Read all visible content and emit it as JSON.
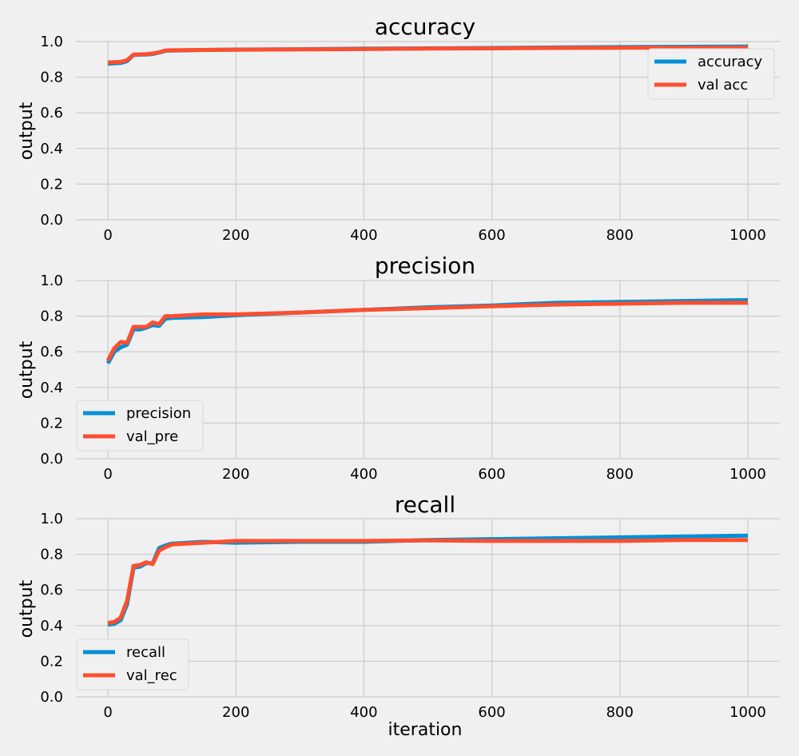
{
  "figure": {
    "background": "#f0f0f0"
  },
  "chart_data": [
    {
      "type": "line",
      "title": "accuracy",
      "xlabel": "",
      "ylabel": "output",
      "xlim": [
        -50,
        1050
      ],
      "ylim": [
        0.0,
        1.0
      ],
      "xticks": [
        "0",
        "200",
        "400",
        "600",
        "800",
        "1000"
      ],
      "yticks": [
        "0.0",
        "0.2",
        "0.4",
        "0.6",
        "0.8",
        "1.0"
      ],
      "grid": true,
      "legend": "top-right",
      "x": [
        0,
        10,
        20,
        30,
        40,
        50,
        60,
        70,
        80,
        90,
        100,
        150,
        200,
        300,
        400,
        500,
        600,
        700,
        800,
        900,
        1000
      ],
      "series": [
        {
          "name": "accuracy",
          "color": "#008fd5",
          "values": [
            0.875,
            0.878,
            0.88,
            0.89,
            0.925,
            0.926,
            0.927,
            0.93,
            0.938,
            0.948,
            0.95,
            0.953,
            0.955,
            0.957,
            0.96,
            0.962,
            0.964,
            0.967,
            0.969,
            0.971,
            0.972
          ]
        },
        {
          "name": "val acc",
          "color": "#fc4f30",
          "values": [
            0.882,
            0.884,
            0.886,
            0.895,
            0.927,
            0.928,
            0.929,
            0.933,
            0.94,
            0.95,
            0.951,
            0.953,
            0.954,
            0.956,
            0.958,
            0.961,
            0.962,
            0.964,
            0.965,
            0.966,
            0.966
          ]
        }
      ]
    },
    {
      "type": "line",
      "title": "precision",
      "xlabel": "",
      "ylabel": "output",
      "xlim": [
        -50,
        1050
      ],
      "ylim": [
        0.0,
        1.0
      ],
      "xticks": [
        "0",
        "200",
        "400",
        "600",
        "800",
        "1000"
      ],
      "yticks": [
        "0.0",
        "0.2",
        "0.4",
        "0.6",
        "0.8",
        "1.0"
      ],
      "grid": true,
      "legend": "bottom-left",
      "x": [
        0,
        10,
        20,
        30,
        40,
        50,
        60,
        70,
        80,
        90,
        100,
        150,
        200,
        300,
        400,
        500,
        600,
        700,
        800,
        900,
        1000
      ],
      "series": [
        {
          "name": "precision",
          "color": "#008fd5",
          "values": [
            0.535,
            0.6,
            0.625,
            0.64,
            0.725,
            0.725,
            0.735,
            0.75,
            0.745,
            0.785,
            0.79,
            0.795,
            0.805,
            0.82,
            0.835,
            0.85,
            0.86,
            0.875,
            0.88,
            0.885,
            0.89
          ]
        },
        {
          "name": "val_pre",
          "color": "#fc4f30",
          "values": [
            0.55,
            0.62,
            0.655,
            0.65,
            0.74,
            0.74,
            0.74,
            0.765,
            0.755,
            0.8,
            0.8,
            0.81,
            0.81,
            0.82,
            0.835,
            0.845,
            0.855,
            0.865,
            0.87,
            0.875,
            0.875
          ]
        }
      ]
    },
    {
      "type": "line",
      "title": "recall",
      "xlabel": "iteration",
      "ylabel": "output",
      "xlim": [
        -50,
        1050
      ],
      "ylim": [
        0.0,
        1.0
      ],
      "xticks": [
        "0",
        "200",
        "400",
        "600",
        "800",
        "1000"
      ],
      "yticks": [
        "0.0",
        "0.2",
        "0.4",
        "0.6",
        "0.8",
        "1.0"
      ],
      "grid": true,
      "legend": "bottom-left",
      "x": [
        0,
        10,
        20,
        30,
        40,
        50,
        60,
        70,
        80,
        90,
        100,
        150,
        200,
        300,
        400,
        500,
        600,
        700,
        800,
        900,
        1000
      ],
      "series": [
        {
          "name": "recall",
          "color": "#008fd5",
          "values": [
            0.405,
            0.41,
            0.43,
            0.52,
            0.725,
            0.73,
            0.75,
            0.75,
            0.835,
            0.85,
            0.86,
            0.87,
            0.865,
            0.87,
            0.87,
            0.88,
            0.885,
            0.89,
            0.895,
            0.9,
            0.905
          ]
        },
        {
          "name": "val_rec",
          "color": "#fc4f30",
          "values": [
            0.415,
            0.42,
            0.445,
            0.54,
            0.735,
            0.74,
            0.755,
            0.745,
            0.82,
            0.84,
            0.855,
            0.865,
            0.875,
            0.875,
            0.875,
            0.878,
            0.875,
            0.875,
            0.875,
            0.88,
            0.88
          ]
        }
      ]
    }
  ]
}
